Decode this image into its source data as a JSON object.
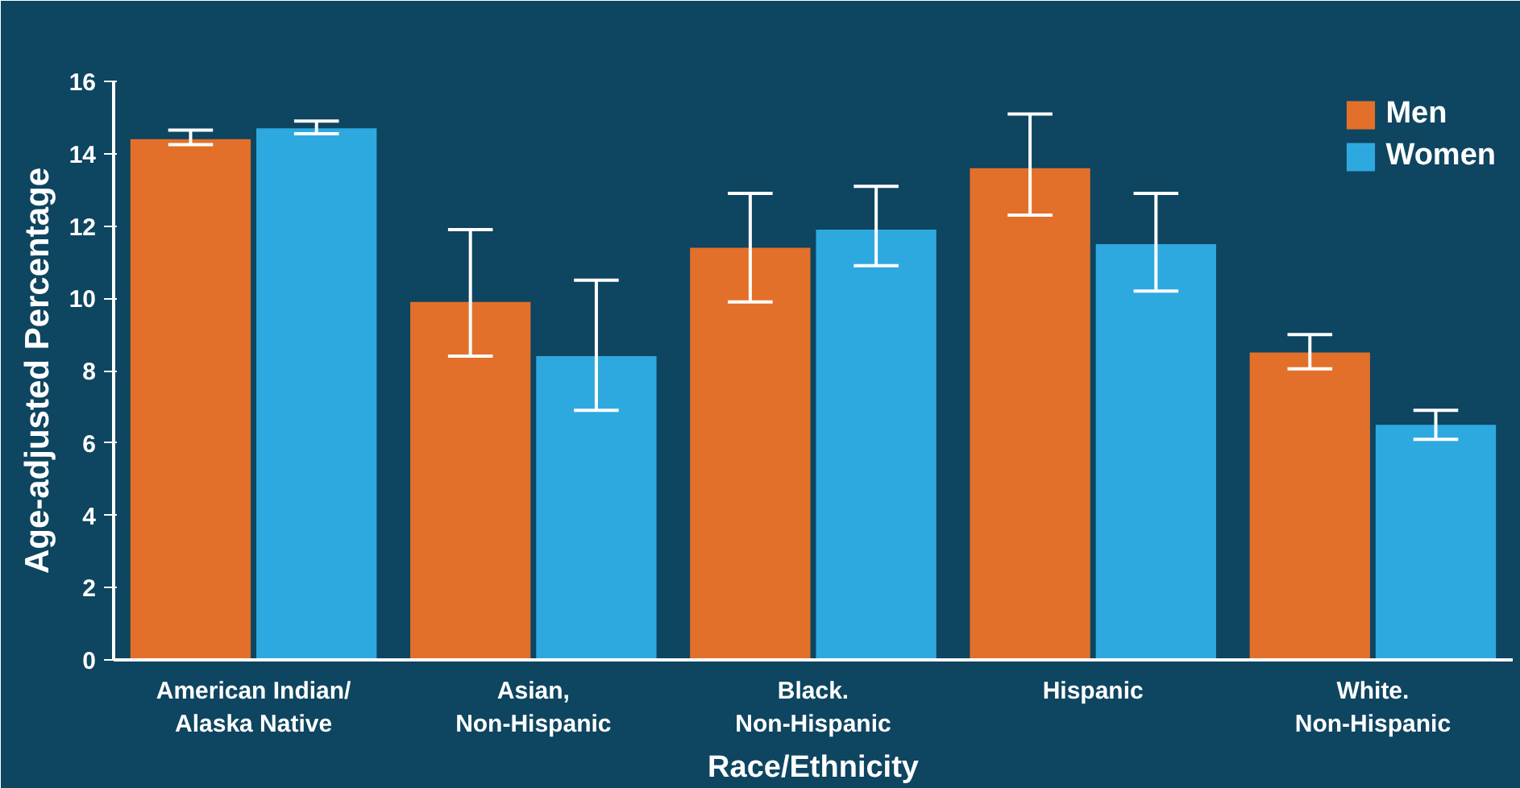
{
  "chart_data": {
    "type": "bar",
    "xlabel": "Race/Ethnicity",
    "ylabel": "Age-adjusted Percentage",
    "categories": [
      "American Indian/\nAlaska Native",
      "Asian,\nNon-Hispanic",
      "Black.\nNon-Hispanic",
      "Hispanic",
      "White.\nNon-Hispanic"
    ],
    "series": [
      {
        "name": "Men",
        "color": "#e3702a",
        "values": [
          14.4,
          9.9,
          11.4,
          13.6,
          8.5
        ],
        "errors": [
          [
            14.25,
            14.65
          ],
          [
            8.4,
            11.9
          ],
          [
            9.9,
            12.9
          ],
          [
            12.3,
            15.1
          ],
          [
            8.05,
            9.0
          ]
        ]
      },
      {
        "name": "Women",
        "color": "#2ea9e0",
        "values": [
          14.7,
          8.4,
          11.9,
          11.5,
          6.5
        ],
        "errors": [
          [
            14.55,
            14.9
          ],
          [
            6.9,
            10.5
          ],
          [
            10.9,
            13.1
          ],
          [
            10.2,
            12.9
          ],
          [
            6.1,
            6.9
          ]
        ]
      }
    ],
    "ylim": [
      0,
      16
    ],
    "yticks": [
      0,
      2,
      4,
      6,
      8,
      10,
      12,
      14,
      16
    ],
    "grid": false,
    "legend": "top right"
  }
}
